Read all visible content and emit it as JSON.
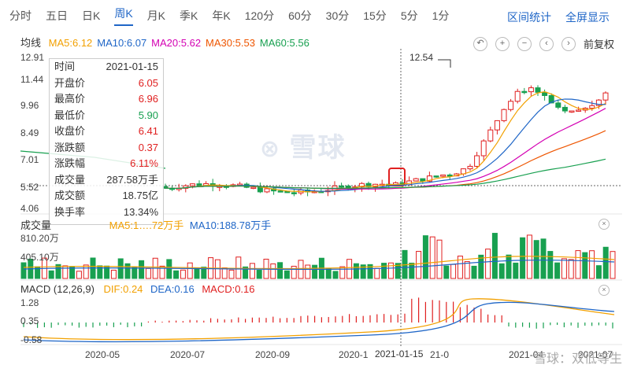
{
  "tabs": [
    "分时",
    "五日",
    "日K",
    "周K",
    "月K",
    "季K",
    "年K",
    "120分",
    "60分",
    "30分",
    "15分",
    "5分",
    "1分"
  ],
  "active_tab": "周K",
  "right_links": [
    "区间统计",
    "全屏显示"
  ],
  "ma": {
    "label": "均线",
    "items": [
      {
        "text": "MA5:6.12",
        "color": "#f2a000"
      },
      {
        "text": "MA10:6.07",
        "color": "#1f66c7"
      },
      {
        "text": "MA20:5.62",
        "color": "#d400b3"
      },
      {
        "text": "MA30:5.53",
        "color": "#ee5500"
      },
      {
        "text": "MA60:5.56",
        "color": "#18a050"
      }
    ]
  },
  "tools": {
    "back_icon": "↶",
    "plus_icon": "+",
    "minus_icon": "−",
    "left_icon": "‹",
    "right_icon": "›",
    "adjust": "前复权"
  },
  "price_axis": [
    "12.91",
    "11.44",
    "9.96",
    "8.49",
    "7.01",
    "5.52",
    "4.06"
  ],
  "info_box": [
    {
      "k": "时间",
      "v": "2021-01-15",
      "c": "#333"
    },
    {
      "k": "开盘价",
      "v": "6.05",
      "c": "#e02020"
    },
    {
      "k": "最高价",
      "v": "6.96",
      "c": "#e02020"
    },
    {
      "k": "最低价",
      "v": "5.90",
      "c": "#18a050"
    },
    {
      "k": "收盘价",
      "v": "6.41",
      "c": "#e02020"
    },
    {
      "k": "涨跌额",
      "v": "0.37",
      "c": "#e02020"
    },
    {
      "k": "涨跌幅",
      "v": "6.11%",
      "c": "#e02020"
    },
    {
      "k": "成交量",
      "v": "287.58万手",
      "c": "#333"
    },
    {
      "k": "成交额",
      "v": "18.75亿",
      "c": "#333"
    },
    {
      "k": "换手率",
      "v": "13.34%",
      "c": "#333"
    }
  ],
  "high_marker": "12.54",
  "watermark": "雪球",
  "volume": {
    "label": "成交量",
    "ma5_partial": "MA5:1…",
    "ma5_tail": ".72万手",
    "ma10": "MA10:188.78万手",
    "axis": [
      "810.20万",
      "405.10万"
    ]
  },
  "macd": {
    "label": "MACD (12,26,9)",
    "dif": "DIF:0.24",
    "dea": "DEA:0.16",
    "macd": "MACD:0.16",
    "axis": [
      "1.28",
      "0.35",
      "-0.58"
    ]
  },
  "x_labels": [
    "2020-05",
    "2020-07",
    "2020-09",
    "2020-1",
    "2021-01-15",
    "21-0",
    "2021-04",
    "2021-07"
  ],
  "footer_watermark": "雪球：双低等生",
  "close_icon": "×",
  "colors": {
    "up": "#e02020",
    "down": "#18a050",
    "accent": "#1f66c7"
  }
}
